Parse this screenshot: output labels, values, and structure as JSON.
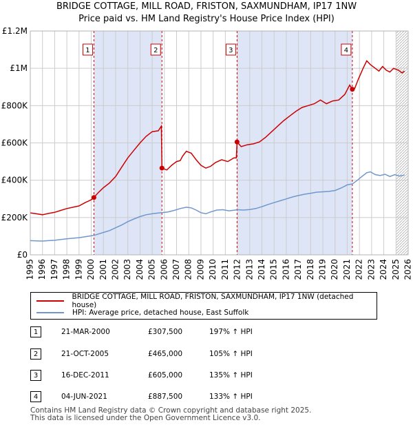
{
  "title": "BRIDGE COTTAGE, MILL ROAD, FRISTON, SAXMUNDHAM, IP17 1NW",
  "subtitle": "Price paid vs. HM Land Registry's House Price Index (HPI)",
  "colors": {
    "property": "#cc0000",
    "hpi": "#6f97cc",
    "shade": "#dde5f7",
    "grid": "#cccccc"
  },
  "chart_data": {
    "type": "line",
    "xlim": [
      1995,
      2026
    ],
    "ylim": [
      0,
      1200000
    ],
    "yticks": [
      {
        "value": 0,
        "label": "£0"
      },
      {
        "value": 200000,
        "label": "£200K"
      },
      {
        "value": 400000,
        "label": "£400K"
      },
      {
        "value": 600000,
        "label": "£600K"
      },
      {
        "value": 800000,
        "label": "£800K"
      },
      {
        "value": 1000000,
        "label": "£1M"
      },
      {
        "value": 1200000,
        "label": "£1.2M"
      }
    ],
    "xticks": [
      "1995",
      "1996",
      "1997",
      "1998",
      "1999",
      "2000",
      "2001",
      "2002",
      "2003",
      "2004",
      "2005",
      "2006",
      "2007",
      "2008",
      "2009",
      "2010",
      "2011",
      "2012",
      "2013",
      "2014",
      "2015",
      "2016",
      "2017",
      "2018",
      "2019",
      "2020",
      "2021",
      "2022",
      "2023",
      "2024",
      "2025",
      "2026"
    ],
    "shaded_ranges": [
      [
        2000.22,
        2005.8
      ],
      [
        2011.96,
        2021.42
      ]
    ],
    "future_hatch_from": 2025.0,
    "series": [
      {
        "name": "BRIDGE COTTAGE, MILL ROAD, FRISTON, SAXMUNDHAM, IP17 1NW (detached house)",
        "color": "#cc0000",
        "points": [
          [
            1995.0,
            225000
          ],
          [
            1995.5,
            220000
          ],
          [
            1996.0,
            215000
          ],
          [
            1996.5,
            222000
          ],
          [
            1997.0,
            228000
          ],
          [
            1997.5,
            238000
          ],
          [
            1998.0,
            248000
          ],
          [
            1998.5,
            255000
          ],
          [
            1999.0,
            262000
          ],
          [
            1999.5,
            280000
          ],
          [
            2000.0,
            295000
          ],
          [
            2000.22,
            307500
          ],
          [
            2000.6,
            335000
          ],
          [
            2001.0,
            360000
          ],
          [
            2001.5,
            385000
          ],
          [
            2002.0,
            420000
          ],
          [
            2002.5,
            470000
          ],
          [
            2003.0,
            520000
          ],
          [
            2003.5,
            560000
          ],
          [
            2004.0,
            600000
          ],
          [
            2004.5,
            635000
          ],
          [
            2005.0,
            660000
          ],
          [
            2005.5,
            665000
          ],
          [
            2005.75,
            690000
          ],
          [
            2005.8,
            465000
          ],
          [
            2006.2,
            455000
          ],
          [
            2006.6,
            480000
          ],
          [
            2007.0,
            500000
          ],
          [
            2007.3,
            505000
          ],
          [
            2007.5,
            530000
          ],
          [
            2007.8,
            555000
          ],
          [
            2008.2,
            545000
          ],
          [
            2008.6,
            510000
          ],
          [
            2009.0,
            480000
          ],
          [
            2009.4,
            465000
          ],
          [
            2009.8,
            475000
          ],
          [
            2010.2,
            495000
          ],
          [
            2010.7,
            510000
          ],
          [
            2011.2,
            500000
          ],
          [
            2011.7,
            520000
          ],
          [
            2011.9,
            520000
          ],
          [
            2011.96,
            605000
          ],
          [
            2012.3,
            580000
          ],
          [
            2012.8,
            590000
          ],
          [
            2013.3,
            595000
          ],
          [
            2013.8,
            605000
          ],
          [
            2014.3,
            630000
          ],
          [
            2014.8,
            660000
          ],
          [
            2015.3,
            690000
          ],
          [
            2015.8,
            720000
          ],
          [
            2016.3,
            745000
          ],
          [
            2016.8,
            770000
          ],
          [
            2017.3,
            790000
          ],
          [
            2017.8,
            800000
          ],
          [
            2018.3,
            810000
          ],
          [
            2018.8,
            830000
          ],
          [
            2019.3,
            810000
          ],
          [
            2019.8,
            825000
          ],
          [
            2020.3,
            830000
          ],
          [
            2020.8,
            860000
          ],
          [
            2021.2,
            910000
          ],
          [
            2021.42,
            887500
          ],
          [
            2021.6,
            890000
          ],
          [
            2021.9,
            940000
          ],
          [
            2022.3,
            1000000
          ],
          [
            2022.6,
            1040000
          ],
          [
            2022.9,
            1020000
          ],
          [
            2023.3,
            1000000
          ],
          [
            2023.6,
            985000
          ],
          [
            2023.9,
            1010000
          ],
          [
            2024.2,
            990000
          ],
          [
            2024.5,
            980000
          ],
          [
            2024.8,
            1000000
          ],
          [
            2025.2,
            990000
          ],
          [
            2025.5,
            975000
          ],
          [
            2025.7,
            985000
          ]
        ]
      },
      {
        "name": "HPI: Average price, detached house, East Suffolk",
        "color": "#6f97cc",
        "points": [
          [
            1995.0,
            76000
          ],
          [
            1995.5,
            75000
          ],
          [
            1996.0,
            74000
          ],
          [
            1996.5,
            76000
          ],
          [
            1997.0,
            78000
          ],
          [
            1997.5,
            82000
          ],
          [
            1998.0,
            86000
          ],
          [
            1998.5,
            89000
          ],
          [
            1999.0,
            92000
          ],
          [
            1999.5,
            97000
          ],
          [
            2000.0,
            102000
          ],
          [
            2000.22,
            104000
          ],
          [
            2000.6,
            112000
          ],
          [
            2001.0,
            120000
          ],
          [
            2001.5,
            130000
          ],
          [
            2002.0,
            145000
          ],
          [
            2002.5,
            160000
          ],
          [
            2003.0,
            178000
          ],
          [
            2003.5,
            192000
          ],
          [
            2004.0,
            205000
          ],
          [
            2004.5,
            215000
          ],
          [
            2005.0,
            220000
          ],
          [
            2005.5,
            224000
          ],
          [
            2005.8,
            226000
          ],
          [
            2006.3,
            230000
          ],
          [
            2006.8,
            238000
          ],
          [
            2007.3,
            248000
          ],
          [
            2007.8,
            255000
          ],
          [
            2008.2,
            252000
          ],
          [
            2008.6,
            240000
          ],
          [
            2009.0,
            226000
          ],
          [
            2009.4,
            220000
          ],
          [
            2009.8,
            230000
          ],
          [
            2010.3,
            240000
          ],
          [
            2010.8,
            242000
          ],
          [
            2011.3,
            236000
          ],
          [
            2011.8,
            240000
          ],
          [
            2011.96,
            242000
          ],
          [
            2012.5,
            240000
          ],
          [
            2013.0,
            243000
          ],
          [
            2013.5,
            248000
          ],
          [
            2014.0,
            258000
          ],
          [
            2014.5,
            270000
          ],
          [
            2015.0,
            280000
          ],
          [
            2015.5,
            290000
          ],
          [
            2016.0,
            300000
          ],
          [
            2016.5,
            310000
          ],
          [
            2017.0,
            318000
          ],
          [
            2017.5,
            325000
          ],
          [
            2018.0,
            330000
          ],
          [
            2018.5,
            336000
          ],
          [
            2019.0,
            338000
          ],
          [
            2019.5,
            340000
          ],
          [
            2020.0,
            345000
          ],
          [
            2020.5,
            358000
          ],
          [
            2021.0,
            375000
          ],
          [
            2021.42,
            380000
          ],
          [
            2021.8,
            398000
          ],
          [
            2022.2,
            420000
          ],
          [
            2022.6,
            440000
          ],
          [
            2022.9,
            445000
          ],
          [
            2023.3,
            430000
          ],
          [
            2023.7,
            425000
          ],
          [
            2024.1,
            432000
          ],
          [
            2024.5,
            420000
          ],
          [
            2024.9,
            430000
          ],
          [
            2025.3,
            422000
          ],
          [
            2025.7,
            428000
          ]
        ]
      }
    ],
    "markers": [
      {
        "label": "1",
        "x": 2000.22,
        "y": 307500
      },
      {
        "label": "2",
        "x": 2005.8,
        "y": 465000
      },
      {
        "label": "3",
        "x": 2011.96,
        "y": 605000
      },
      {
        "label": "4",
        "x": 2021.42,
        "y": 887500
      }
    ]
  },
  "legend": {
    "property_label": "BRIDGE COTTAGE, MILL ROAD, FRISTON, SAXMUNDHAM, IP17 1NW (detached house)",
    "hpi_label": "HPI: Average price, detached house, East Suffolk"
  },
  "transactions": [
    {
      "num": "1",
      "date": "21-MAR-2000",
      "price": "£307,500",
      "hpi": "197% ↑ HPI"
    },
    {
      "num": "2",
      "date": "21-OCT-2005",
      "price": "£465,000",
      "hpi": "105% ↑ HPI"
    },
    {
      "num": "3",
      "date": "16-DEC-2011",
      "price": "£605,000",
      "hpi": "135% ↑ HPI"
    },
    {
      "num": "4",
      "date": "04-JUN-2021",
      "price": "£887,500",
      "hpi": "133% ↑ HPI"
    }
  ],
  "footer": {
    "line1": "Contains HM Land Registry data © Crown copyright and database right 2025.",
    "line2": "This data is licensed under the Open Government Licence v3.0."
  }
}
